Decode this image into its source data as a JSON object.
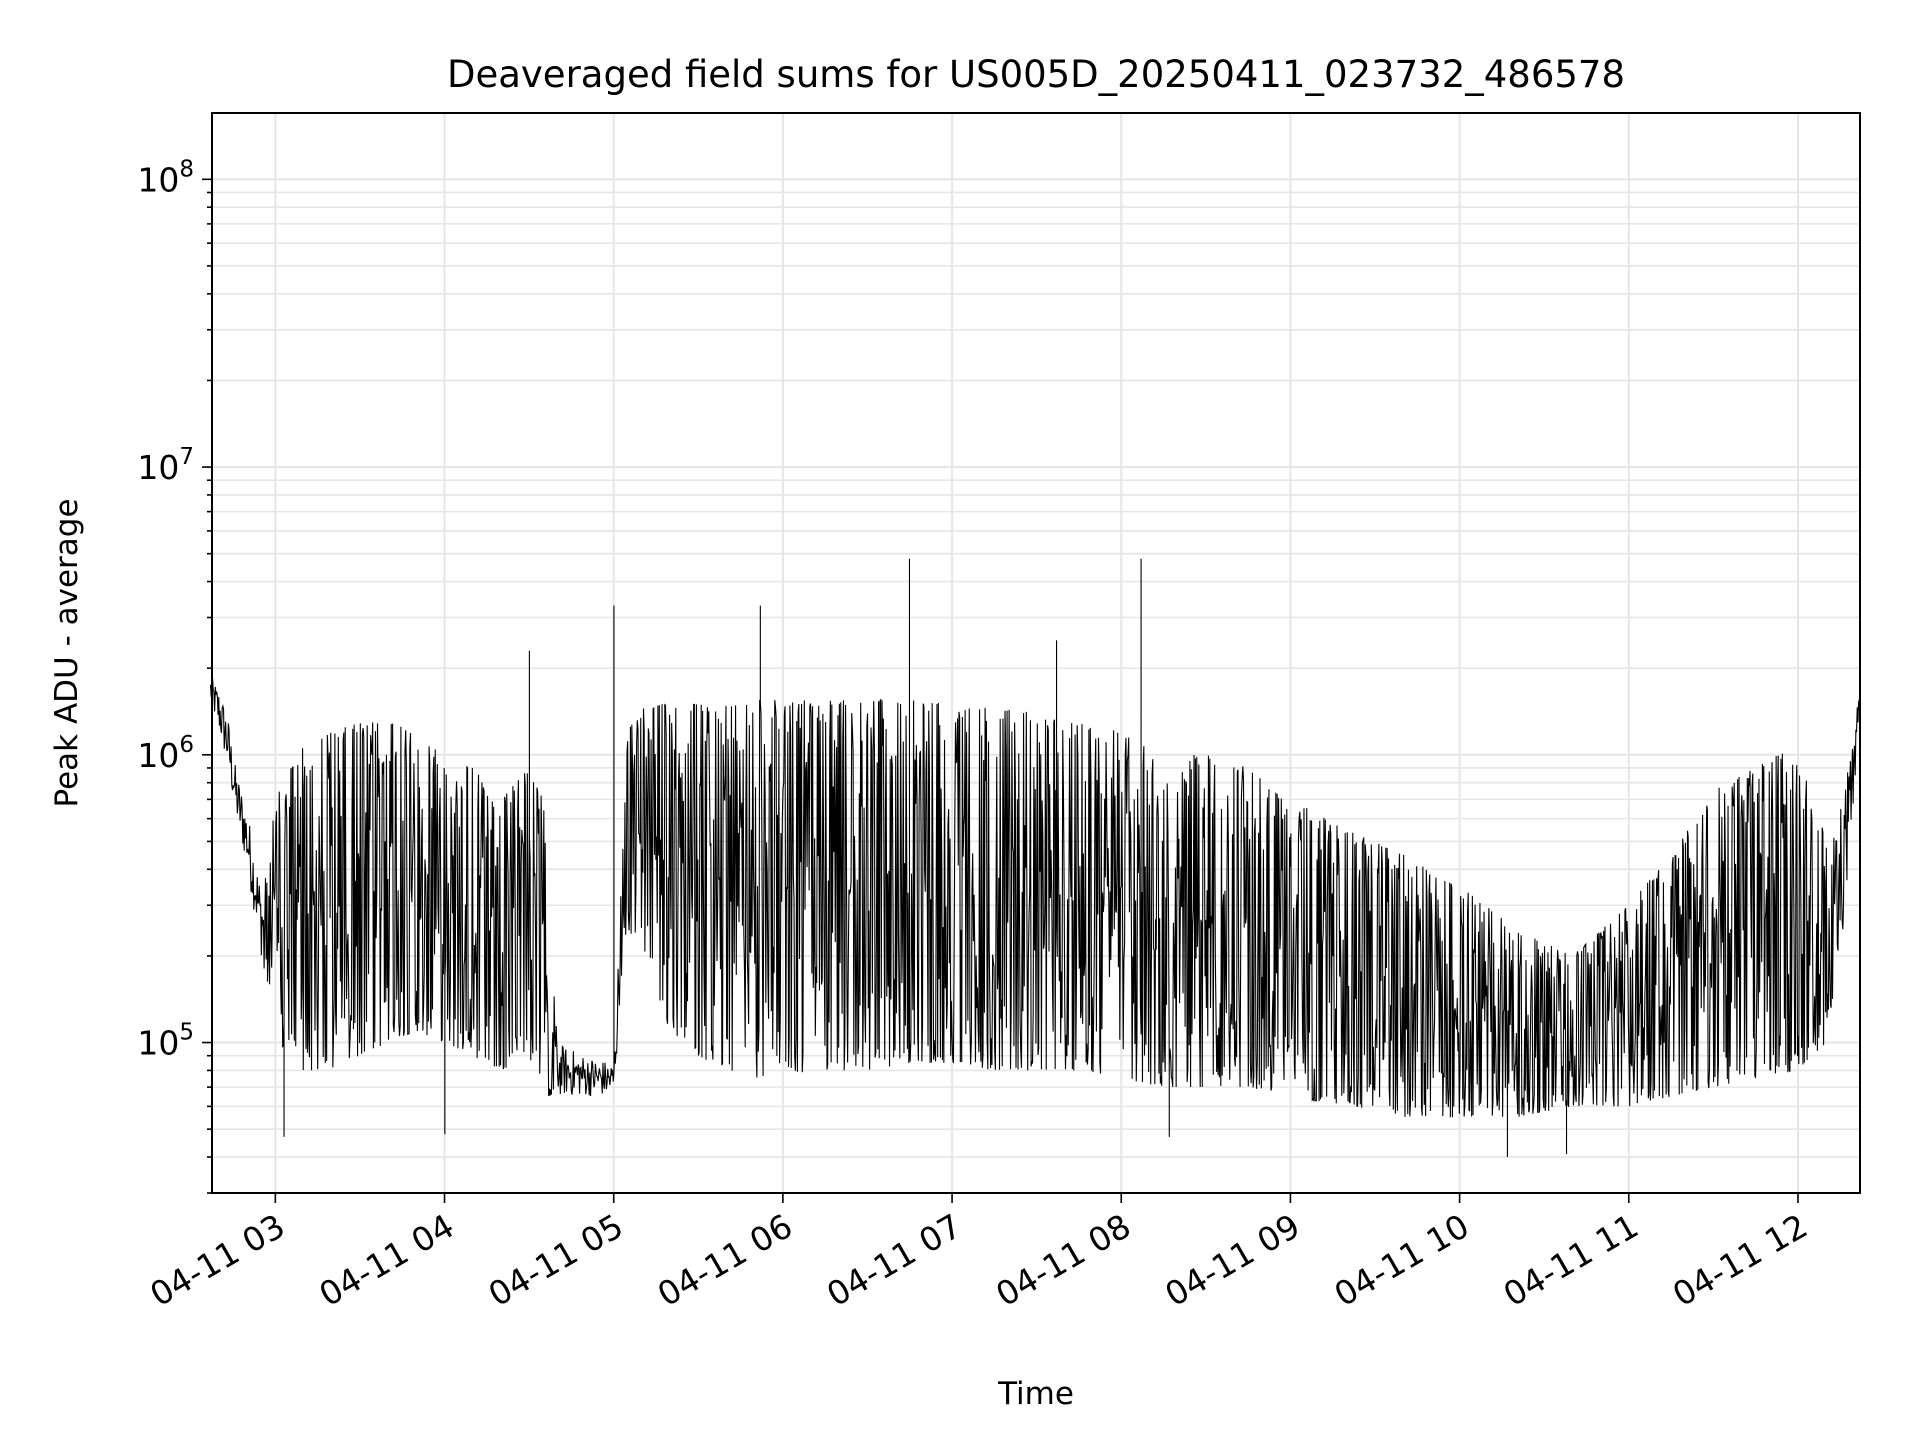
{
  "chart_data": {
    "type": "line",
    "title": "Deaveraged field sums for US005D_20250411_023732_486578",
    "xlabel": "Time",
    "ylabel": "Peak ADU - average",
    "yscale": "log",
    "ylim": [
      30000,
      170000000
    ],
    "xlim": [
      "2025-04-11T02:37:32",
      "2025-04-11T12:22:00"
    ],
    "grid": true,
    "line_color": "#000000",
    "grid_color": "#e6e6e6",
    "x_ticks": [
      {
        "t": "2025-04-11T03:00",
        "label": "04-11 03"
      },
      {
        "t": "2025-04-11T04:00",
        "label": "04-11 04"
      },
      {
        "t": "2025-04-11T05:00",
        "label": "04-11 05"
      },
      {
        "t": "2025-04-11T06:00",
        "label": "04-11 06"
      },
      {
        "t": "2025-04-11T07:00",
        "label": "04-11 07"
      },
      {
        "t": "2025-04-11T08:00",
        "label": "04-11 08"
      },
      {
        "t": "2025-04-11T09:00",
        "label": "04-11 09"
      },
      {
        "t": "2025-04-11T10:00",
        "label": "04-11 10"
      },
      {
        "t": "2025-04-11T11:00",
        "label": "04-11 11"
      },
      {
        "t": "2025-04-11T12:00",
        "label": "04-11 12"
      }
    ],
    "y_ticks": [
      {
        "value": 100000,
        "base": "10",
        "exp": "5"
      },
      {
        "value": 1000000,
        "base": "10",
        "exp": "6"
      },
      {
        "value": 10000000,
        "base": "10",
        "exp": "7"
      },
      {
        "value": 100000000,
        "base": "10",
        "exp": "8"
      }
    ],
    "series": [
      {
        "x": [
          "2025-04-11T02:37",
          "2025-04-11T02:40",
          "2025-04-11T02:43",
          "2025-04-11T02:46",
          "2025-04-11T02:50",
          "2025-04-11T02:55",
          "2025-04-11T03:00",
          "2025-04-11T03:10",
          "2025-04-11T03:20",
          "2025-04-11T03:30",
          "2025-04-11T03:40",
          "2025-04-11T03:50",
          "2025-04-11T04:00",
          "2025-04-11T04:10",
          "2025-04-11T04:20",
          "2025-04-11T04:30",
          "2025-04-11T04:35",
          "2025-04-11T04:40",
          "2025-04-11T04:50",
          "2025-04-11T05:00",
          "2025-04-11T05:05",
          "2025-04-11T05:10",
          "2025-04-11T05:20",
          "2025-04-11T05:30",
          "2025-04-11T05:40",
          "2025-04-11T05:50",
          "2025-04-11T06:00",
          "2025-04-11T06:15",
          "2025-04-11T06:30",
          "2025-04-11T06:45",
          "2025-04-11T07:00",
          "2025-04-11T07:15",
          "2025-04-11T07:30",
          "2025-04-11T07:45",
          "2025-04-11T08:00",
          "2025-04-11T08:15",
          "2025-04-11T08:30",
          "2025-04-11T08:45",
          "2025-04-11T09:00",
          "2025-04-11T09:20",
          "2025-04-11T09:40",
          "2025-04-11T10:00",
          "2025-04-11T10:20",
          "2025-04-11T10:40",
          "2025-04-11T11:00",
          "2025-04-11T11:15",
          "2025-04-11T11:30",
          "2025-04-11T11:45",
          "2025-04-11T12:00",
          "2025-04-11T12:10",
          "2025-04-11T12:16",
          "2025-04-11T12:20",
          "2025-04-11T12:22"
        ],
        "upper": [
          1900000,
          1700000,
          1400000,
          900000,
          650000,
          350000,
          700000,
          1100000,
          1200000,
          1300000,
          1300000,
          1200000,
          1000000,
          900000,
          700000,
          900000,
          700000,
          100000,
          90000,
          85000,
          1200000,
          1500000,
          1500000,
          1500000,
          1500000,
          1550000,
          1550000,
          1550000,
          1550000,
          1550000,
          1500000,
          1450000,
          1400000,
          1300000,
          1200000,
          1000000,
          1000000,
          900000,
          700000,
          550000,
          450000,
          350000,
          250000,
          200000,
          300000,
          450000,
          750000,
          900000,
          1100000,
          500000,
          700000,
          1200000,
          1900000
        ],
        "lower": [
          1500000,
          1200000,
          900000,
          600000,
          400000,
          200000,
          100000,
          80000,
          80000,
          90000,
          100000,
          110000,
          100000,
          90000,
          80000,
          90000,
          65000,
          65000,
          65000,
          65000,
          250000,
          200000,
          110000,
          90000,
          80000,
          75000,
          75000,
          80000,
          80000,
          85000,
          85000,
          80000,
          80000,
          80000,
          75000,
          70000,
          70000,
          70000,
          65000,
          60000,
          55000,
          55000,
          55000,
          60000,
          60000,
          65000,
          70000,
          75000,
          80000,
          100000,
          250000,
          700000,
          1500000
        ],
        "spikes": [
          {
            "x": "2025-04-11T05:00",
            "y": 3300000
          },
          {
            "x": "2025-04-11T05:52",
            "y": 3300000
          },
          {
            "x": "2025-04-11T06:45",
            "y": 4800000
          },
          {
            "x": "2025-04-11T08:07",
            "y": 4800000
          },
          {
            "x": "2025-04-11T04:30",
            "y": 2300000
          },
          {
            "x": "2025-04-11T07:37",
            "y": 2500000
          },
          {
            "x": "2025-04-11T03:03",
            "y": 47000
          },
          {
            "x": "2025-04-11T04:00",
            "y": 48000
          },
          {
            "x": "2025-04-11T08:17",
            "y": 47000
          },
          {
            "x": "2025-04-11T10:17",
            "y": 40000
          },
          {
            "x": "2025-04-11T10:38",
            "y": 41000
          }
        ]
      }
    ]
  }
}
